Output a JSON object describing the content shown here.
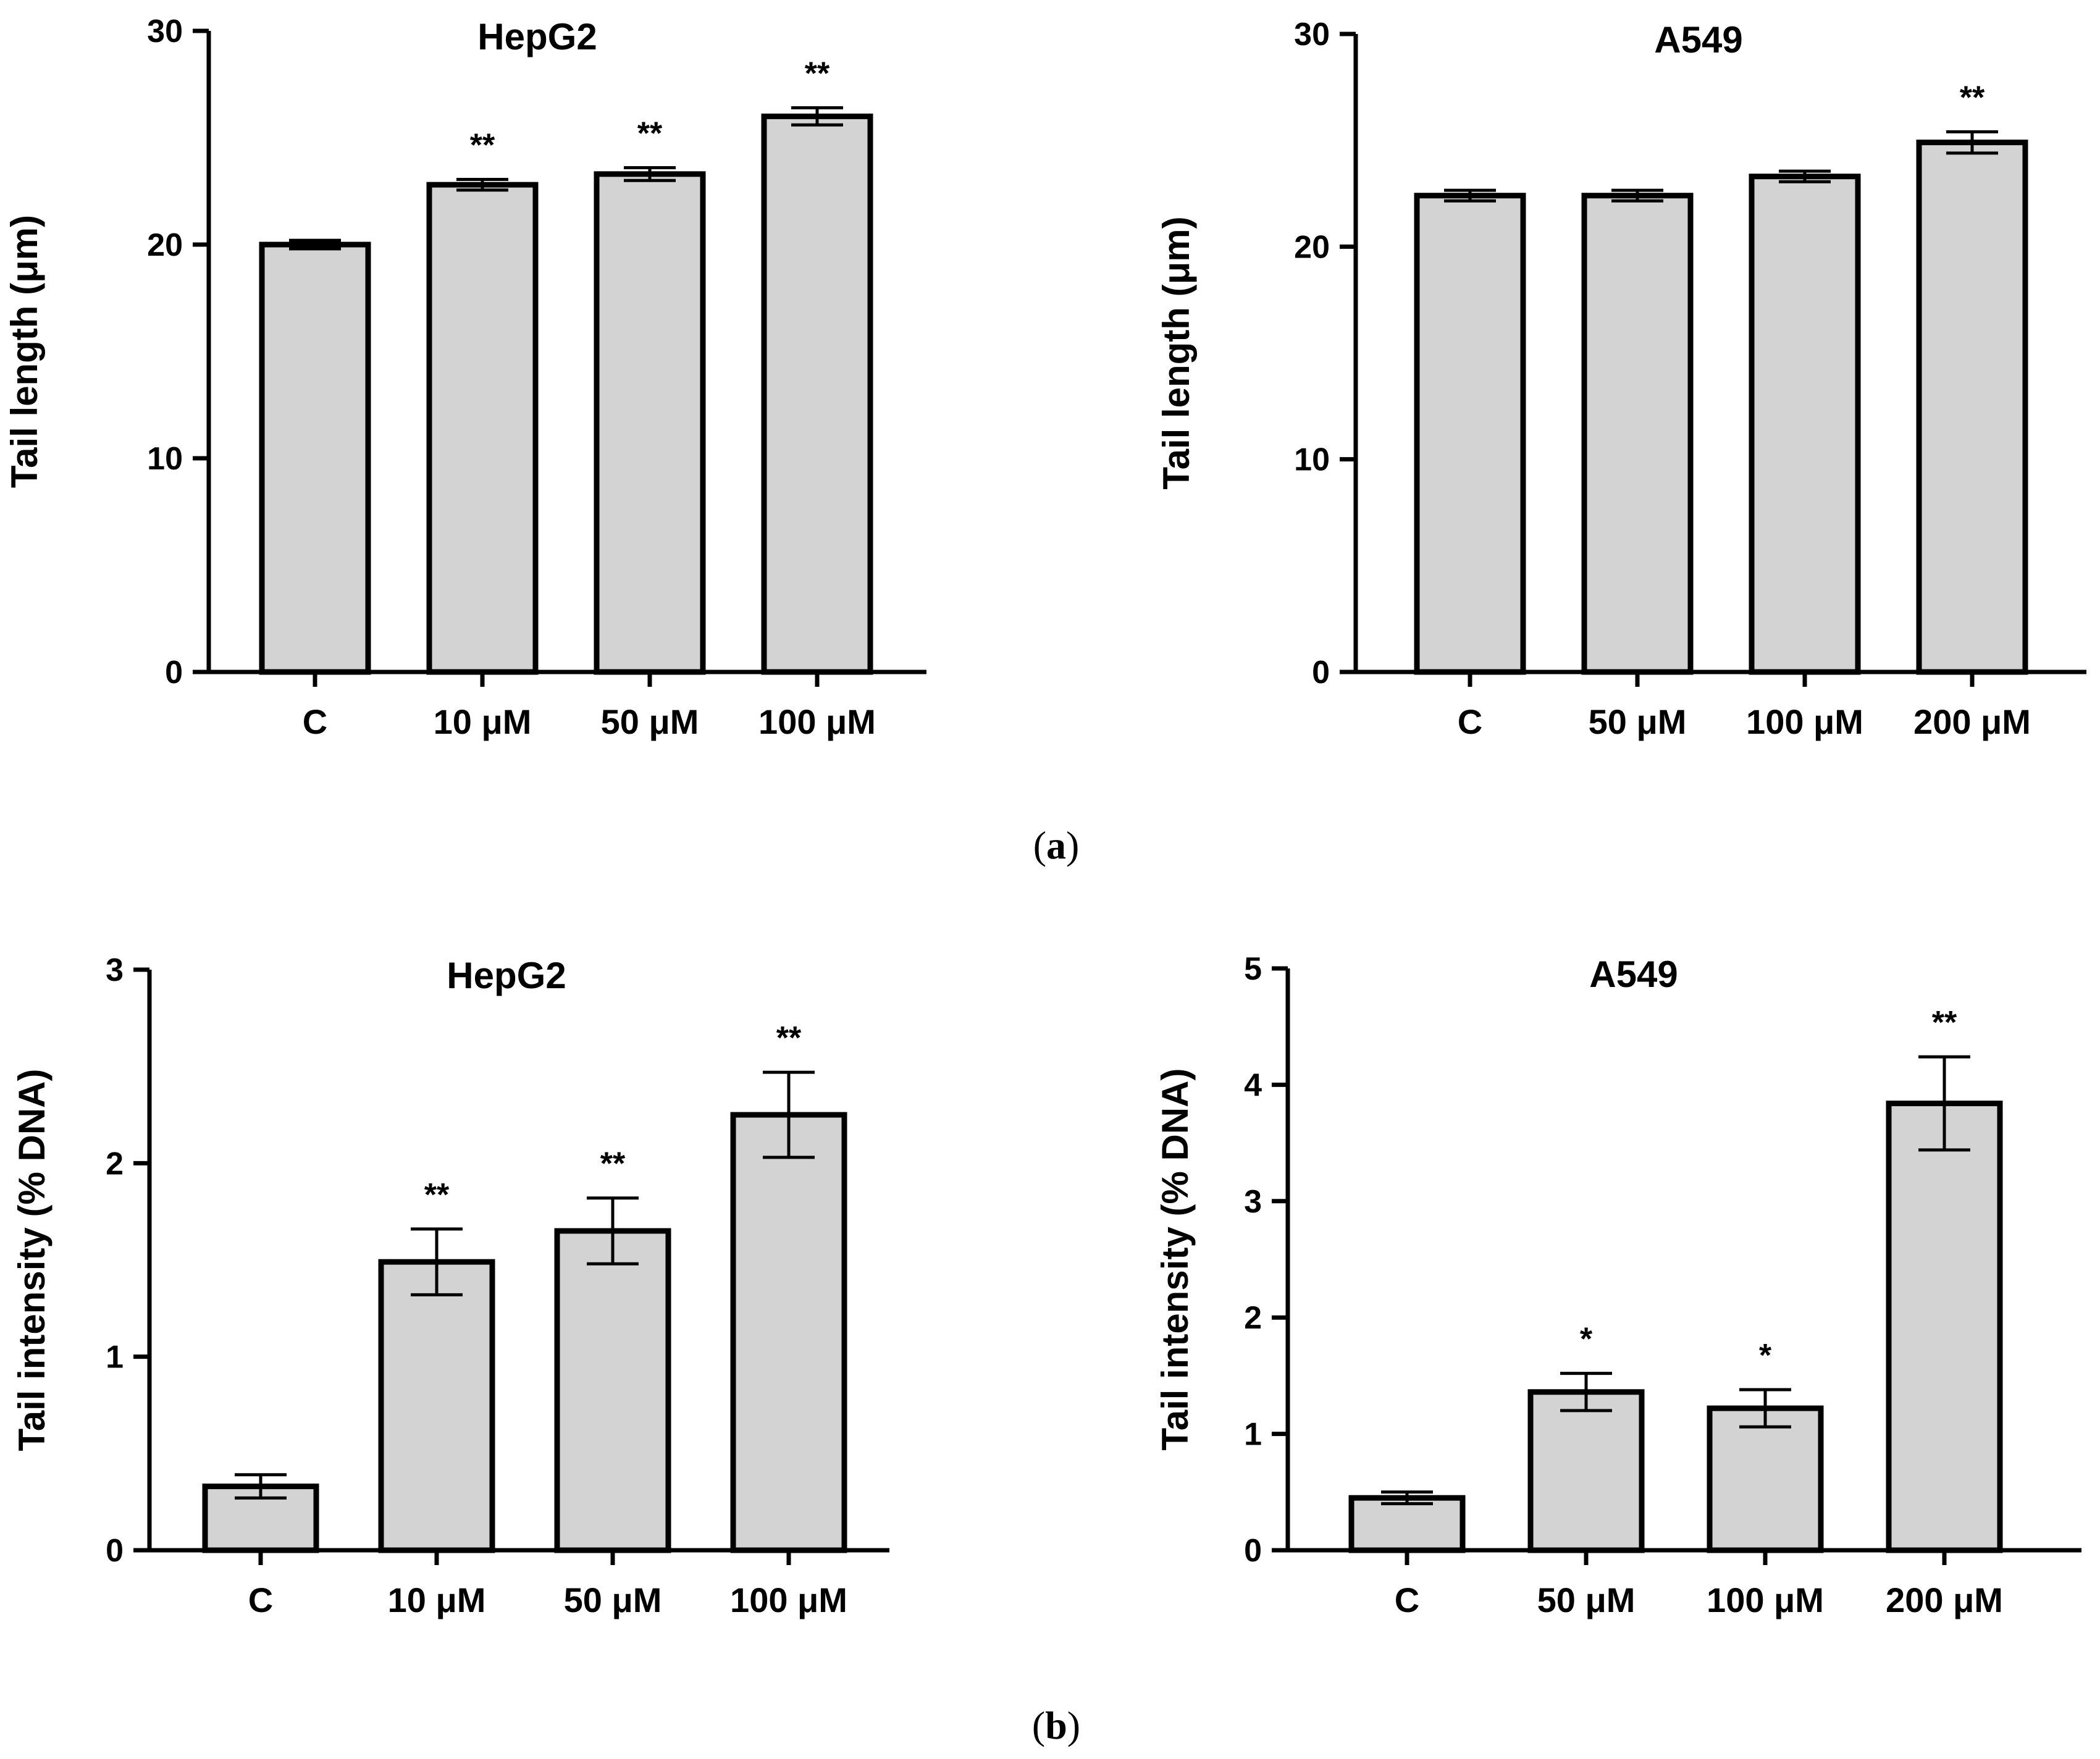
{
  "panels": [
    {
      "label": "a"
    },
    {
      "label": "b"
    }
  ],
  "chart_data": [
    {
      "type": "bar",
      "panel": "a",
      "title": "HepG2",
      "ylabel": "Tail length (μm)",
      "xlabel": "",
      "categories": [
        "C",
        "10 μM",
        "50 μM",
        "100 μM"
      ],
      "values": [
        20.0,
        22.8,
        23.3,
        26.0
      ],
      "errors": [
        0.2,
        0.25,
        0.3,
        0.4
      ],
      "significance": [
        "",
        "**",
        "**",
        "**"
      ],
      "ylim": [
        0,
        30
      ],
      "yticks": [
        0,
        10,
        20,
        30
      ]
    },
    {
      "type": "bar",
      "panel": "a",
      "title": "A549",
      "ylabel": "Tail length (μm)",
      "xlabel": "",
      "categories": [
        "C",
        "50 μM",
        "100 μM",
        "200 μM"
      ],
      "values": [
        22.4,
        22.4,
        23.3,
        24.9
      ],
      "errors": [
        0.25,
        0.25,
        0.25,
        0.5
      ],
      "significance": [
        "",
        "",
        "",
        "**"
      ],
      "ylim": [
        0,
        30
      ],
      "yticks": [
        0,
        10,
        20,
        30
      ]
    },
    {
      "type": "bar",
      "panel": "b",
      "title": "HepG2",
      "ylabel": "Tail intensity (% DNA)",
      "xlabel": "",
      "categories": [
        "C",
        "10 μM",
        "50 μM",
        "100 μM"
      ],
      "values": [
        0.33,
        1.49,
        1.65,
        2.25
      ],
      "errors": [
        0.06,
        0.17,
        0.17,
        0.22
      ],
      "significance": [
        "",
        "**",
        "**",
        "**"
      ],
      "ylim": [
        0,
        3
      ],
      "yticks": [
        0,
        1,
        2,
        3
      ]
    },
    {
      "type": "bar",
      "panel": "b",
      "title": "A549",
      "ylabel": "Tail intensity (% DNA)",
      "xlabel": "",
      "categories": [
        "C",
        "50 μM",
        "100 μM",
        "200 μM"
      ],
      "values": [
        0.45,
        1.36,
        1.22,
        3.84
      ],
      "errors": [
        0.05,
        0.16,
        0.16,
        0.4
      ],
      "significance": [
        "",
        "*",
        "*",
        "**"
      ],
      "ylim": [
        0,
        5
      ],
      "yticks": [
        0,
        1,
        2,
        3,
        4,
        5
      ]
    }
  ]
}
